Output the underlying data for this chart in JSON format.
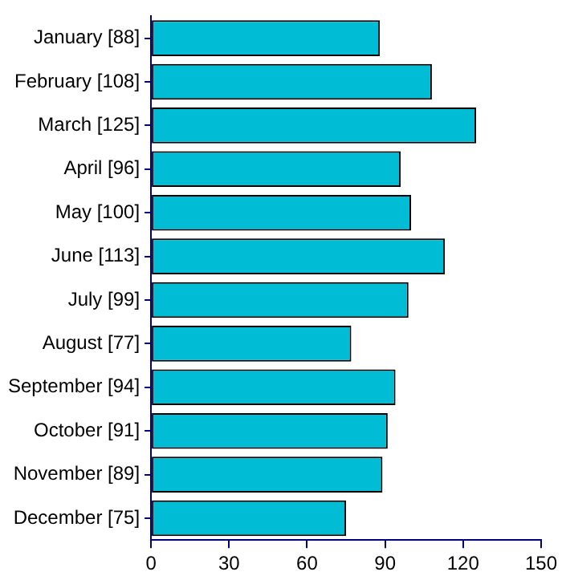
{
  "chart_data": {
    "type": "bar",
    "orientation": "horizontal",
    "categories": [
      "January [88]",
      "February [108]",
      "March [125]",
      "April [96]",
      "May [100]",
      "June [113]",
      "July [99]",
      "August [77]",
      "September [94]",
      "October [91]",
      "November [89]",
      "December [75]"
    ],
    "values": [
      88,
      108,
      125,
      96,
      100,
      113,
      99,
      77,
      94,
      91,
      89,
      75
    ],
    "color": "#00bcd4",
    "xlim": [
      0,
      150
    ],
    "xticks": [
      0,
      30,
      60,
      90,
      120,
      150
    ],
    "grid": false,
    "legend": false
  }
}
